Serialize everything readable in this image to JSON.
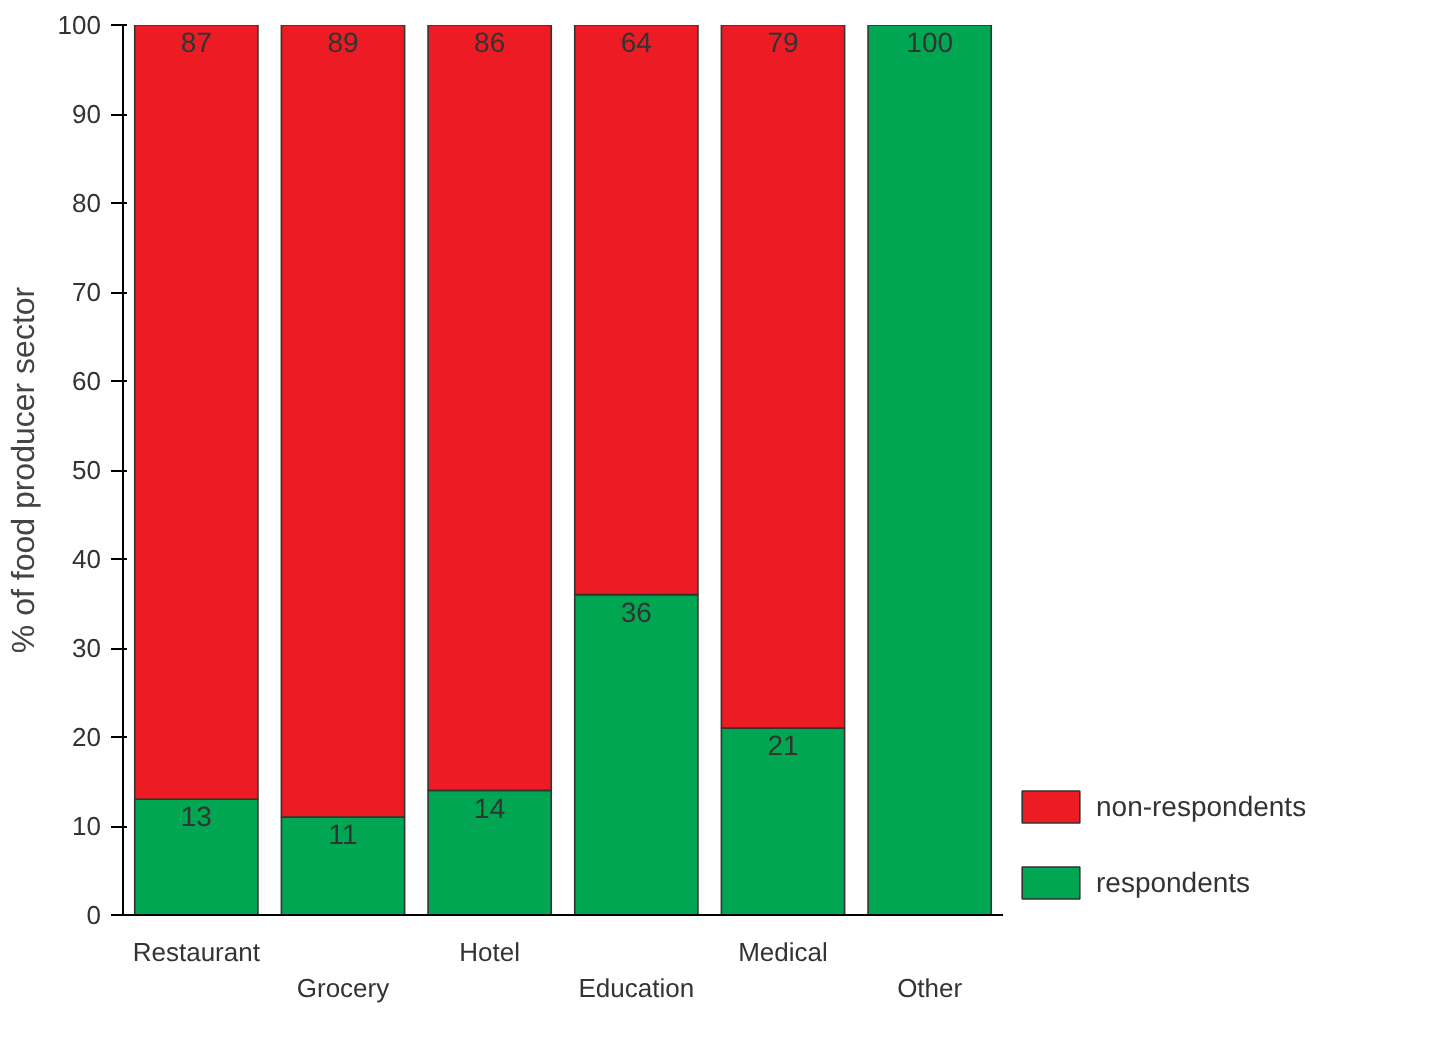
{
  "chart_data": {
    "type": "bar",
    "stacked": true,
    "ylabel": "% of food producer sector",
    "categories": [
      "Restaurant",
      "Grocery",
      "Hotel",
      "Education",
      "Medical",
      "Other"
    ],
    "series": [
      {
        "name": "respondents",
        "color": "#00a651",
        "values": [
          13,
          11,
          14,
          36,
          21,
          100
        ],
        "value_labels": [
          "13",
          "11",
          "14",
          "36",
          "21",
          "100"
        ]
      },
      {
        "name": "non-respondents",
        "color": "#ed1c24",
        "values": [
          87,
          89,
          86,
          64,
          79,
          0
        ],
        "value_labels": [
          "87",
          "89",
          "86",
          "64",
          "79",
          null
        ]
      }
    ],
    "ylim": [
      0,
      100
    ],
    "yticks": [
      0,
      10,
      20,
      30,
      40,
      50,
      60,
      70,
      80,
      90,
      100
    ],
    "grid": false,
    "legend": "bottom right"
  }
}
